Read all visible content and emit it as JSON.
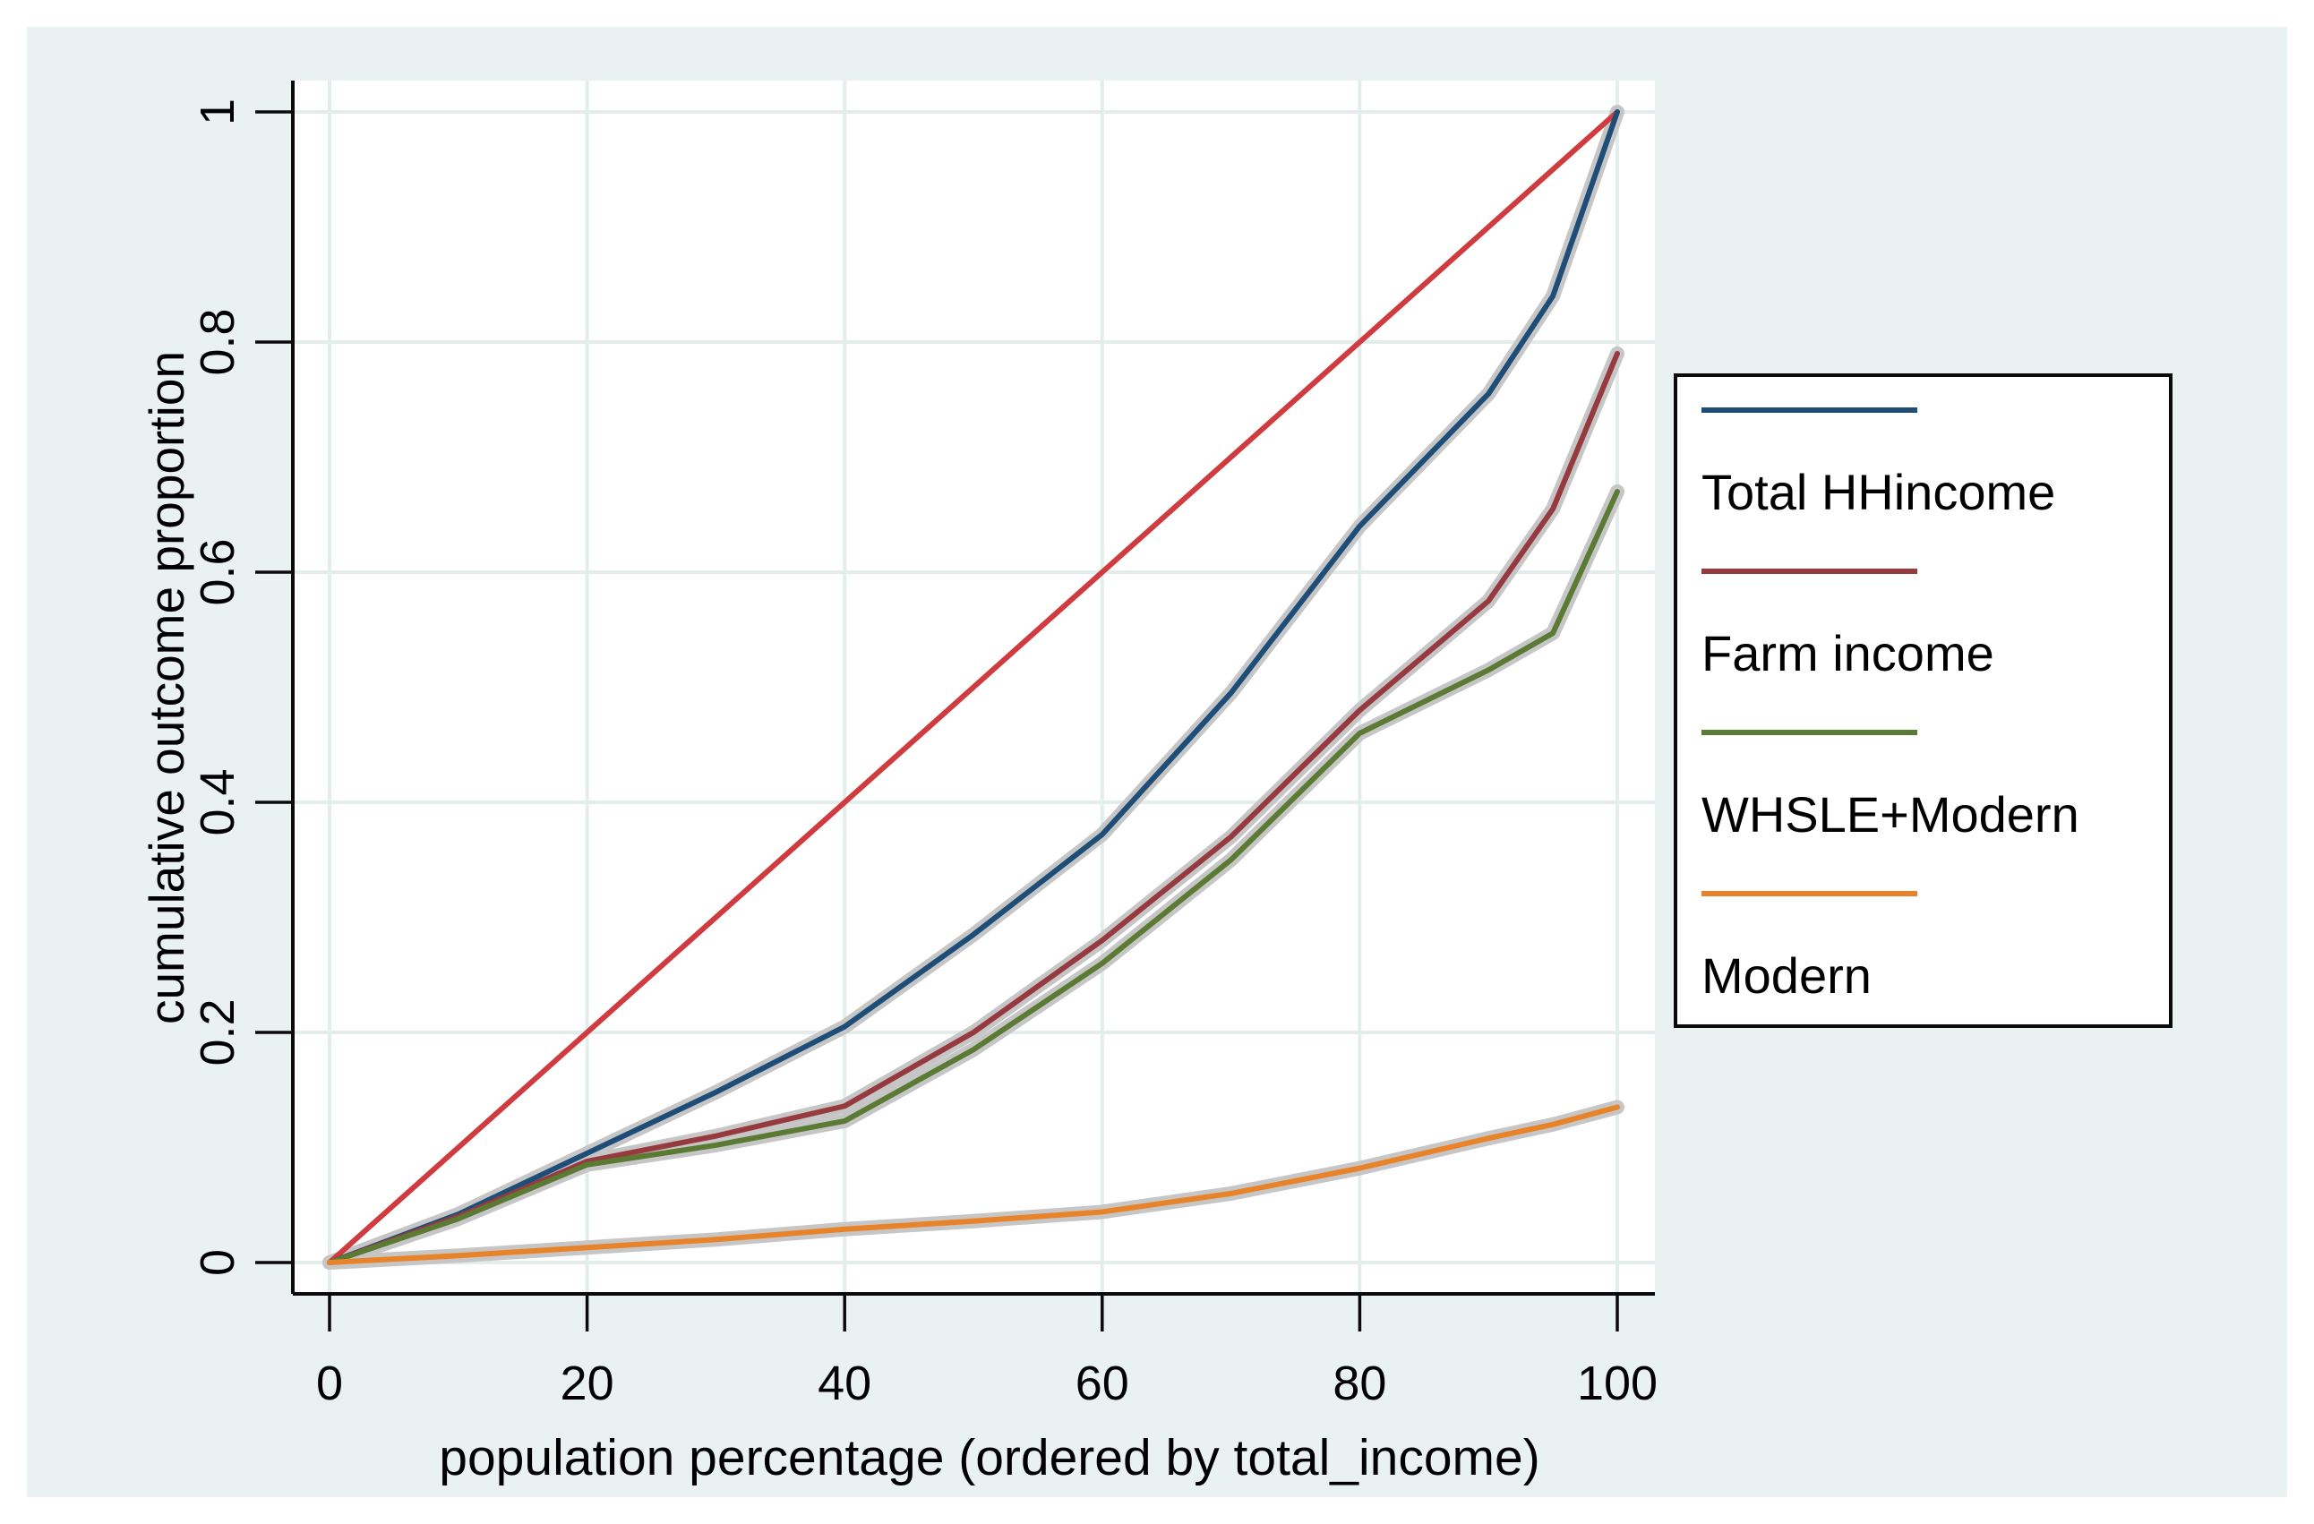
{
  "figure": {
    "page_background": "#ffffff",
    "region_background": "#e9f1f1",
    "plot_background": "#ffffff",
    "grid_color": "#e2edec",
    "axis_color": "#0a0a0a",
    "band_color": "#c6c6c6"
  },
  "axes": {
    "x": {
      "title": "population percentage (ordered by total_income)",
      "tick_labels": [
        "0",
        "20",
        "40",
        "60",
        "80",
        "100"
      ],
      "tick_values": [
        0,
        20,
        40,
        60,
        80,
        100
      ]
    },
    "y": {
      "title": "cumulative outcome proportion",
      "tick_labels": [
        "0",
        "0.2",
        "0.4",
        "0.6",
        "0.8",
        "1"
      ],
      "tick_values": [
        0,
        0.2,
        0.4,
        0.6,
        0.8,
        1
      ]
    }
  },
  "legend": {
    "entries": [
      "Total HHincome",
      "Farm income",
      "WHSLE+Modern",
      "Modern"
    ]
  },
  "chart_data": {
    "type": "line",
    "title": "",
    "xlabel": "population percentage (ordered by total_income)",
    "ylabel": "cumulative outcome proportion",
    "xlim": [
      0,
      100
    ],
    "ylim": [
      0,
      1
    ],
    "grid": true,
    "legend_position": "outside-right",
    "x": [
      0,
      10,
      20,
      30,
      40,
      50,
      60,
      70,
      80,
      90,
      95,
      100
    ],
    "series": [
      {
        "name": "line-of-equality",
        "color": "#d03b3f",
        "confidence_band": false,
        "in_legend": false,
        "values": [
          0,
          0.1,
          0.2,
          0.3,
          0.4,
          0.5,
          0.6,
          0.7,
          0.8,
          0.9,
          0.95,
          1.0
        ]
      },
      {
        "name": "Total HHincome",
        "color": "#1e4e77",
        "confidence_band": true,
        "in_legend": true,
        "values": [
          0,
          0.042,
          0.095,
          0.148,
          0.205,
          0.285,
          0.372,
          0.495,
          0.64,
          0.755,
          0.84,
          1.0
        ]
      },
      {
        "name": "Farm income",
        "color": "#963a40",
        "confidence_band": true,
        "in_legend": true,
        "values": [
          0,
          0.04,
          0.088,
          0.11,
          0.136,
          0.2,
          0.28,
          0.37,
          0.48,
          0.575,
          0.655,
          0.79
        ]
      },
      {
        "name": "WHSLE+Modern",
        "color": "#5b7a33",
        "confidence_band": true,
        "in_legend": true,
        "values": [
          0,
          0.038,
          0.085,
          0.102,
          0.123,
          0.185,
          0.26,
          0.35,
          0.46,
          0.515,
          0.547,
          0.67
        ]
      },
      {
        "name": "Modern",
        "color": "#e8832a",
        "confidence_band": true,
        "in_legend": true,
        "values": [
          0,
          0.006,
          0.013,
          0.02,
          0.029,
          0.036,
          0.044,
          0.06,
          0.082,
          0.108,
          0.12,
          0.135
        ]
      }
    ]
  }
}
